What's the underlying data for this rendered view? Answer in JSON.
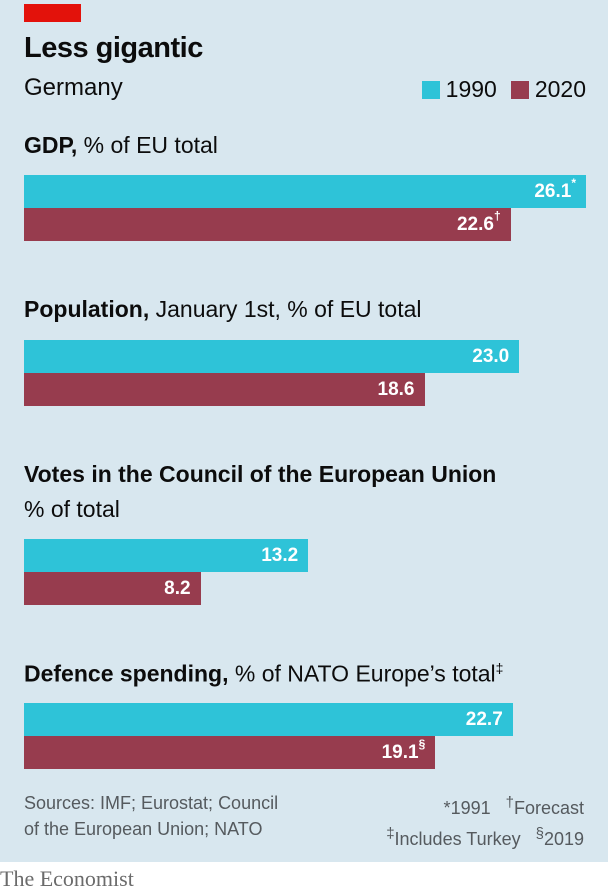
{
  "title": "Less gigantic",
  "subtitle": "Germany",
  "legend": [
    {
      "label": "1990",
      "color": "#2ec3d8"
    },
    {
      "label": "2020",
      "color": "#973c4e"
    }
  ],
  "chart_data": {
    "type": "bar",
    "orientation": "horizontal",
    "series_names": [
      "1990",
      "2020"
    ],
    "xlim": [
      0,
      26.1
    ],
    "panels": [
      {
        "title_bold": "GDP,",
        "title_rest": " % of EU total",
        "subtitle": "",
        "values": [
          26.1,
          22.6
        ],
        "labels": [
          "26.1",
          "22.6"
        ],
        "marks": [
          "*",
          "†"
        ]
      },
      {
        "title_bold": "Population,",
        "title_rest": " January 1st, % of EU total",
        "subtitle": "",
        "values": [
          23.0,
          18.6
        ],
        "labels": [
          "23.0",
          "18.6"
        ],
        "marks": [
          "",
          ""
        ]
      },
      {
        "title_bold": "Votes in the Council of the European Union",
        "title_rest": "",
        "subtitle": "% of total",
        "values": [
          13.2,
          8.2
        ],
        "labels": [
          "13.2",
          "8.2"
        ],
        "marks": [
          "",
          ""
        ]
      },
      {
        "title_bold": "Defence spending,",
        "title_rest": " % of NATO Europe’s total",
        "title_mark": "‡",
        "subtitle": "",
        "values": [
          22.7,
          19.1
        ],
        "labels": [
          "22.7",
          "19.1"
        ],
        "marks": [
          "",
          "§"
        ]
      }
    ]
  },
  "footer": {
    "sources_line1": "Sources: IMF; Eurostat; Council",
    "sources_line2": "of the European Union; NATO",
    "note1_mark": "*",
    "note1_text": "1991",
    "note2_mark": "†",
    "note2_text": "Forecast",
    "note3_mark": "‡",
    "note3_text": "Includes Turkey",
    "note4_mark": "§",
    "note4_text": "2019"
  },
  "brand": "The Economist"
}
